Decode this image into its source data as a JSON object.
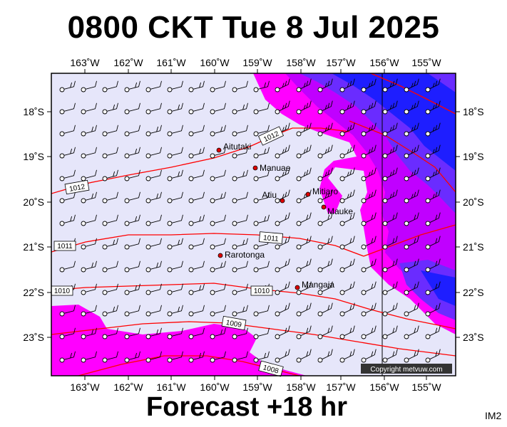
{
  "title": "0800 CKT Tue 8 Jul 2025",
  "footer": "Forecast +18 hr",
  "corner_tag": "IM2",
  "copyright": "Copyright metvuw.com",
  "longitude_labels": [
    "163˚W",
    "162˚W",
    "161˚W",
    "160˚W",
    "159˚W",
    "158˚W",
    "157˚W",
    "156˚W",
    "155˚W"
  ],
  "latitude_labels": [
    "18˚S",
    "19˚S",
    "20˚S",
    "21˚S",
    "22˚S",
    "23˚S"
  ],
  "places": [
    {
      "name": "Aitutaki",
      "marker": "red-dot"
    },
    {
      "name": "Manuae",
      "marker": "red-dot"
    },
    {
      "name": "Atiu",
      "marker": "red-dot"
    },
    {
      "name": "Mitiaro",
      "marker": "red-dot"
    },
    {
      "name": "Mauke",
      "marker": "red-dot"
    },
    {
      "name": "Rarotonga",
      "marker": "red-dot"
    },
    {
      "name": "Mangaia",
      "marker": "red-dot"
    }
  ],
  "isobars": [
    {
      "value": "1012"
    },
    {
      "value": "1012"
    },
    {
      "value": "1011"
    },
    {
      "value": "1011"
    },
    {
      "value": "1010"
    },
    {
      "value": "1010"
    },
    {
      "value": "1009"
    },
    {
      "value": "1008"
    }
  ],
  "colors": {
    "background": "#e6e6fa",
    "rain_light": "#ff00ff",
    "rain_medium": "#c000ff",
    "rain_heavy": "#6a2cff",
    "rain_extreme": "#1e1eff",
    "isobar": "#ff0000",
    "marker": "#dd0000"
  }
}
